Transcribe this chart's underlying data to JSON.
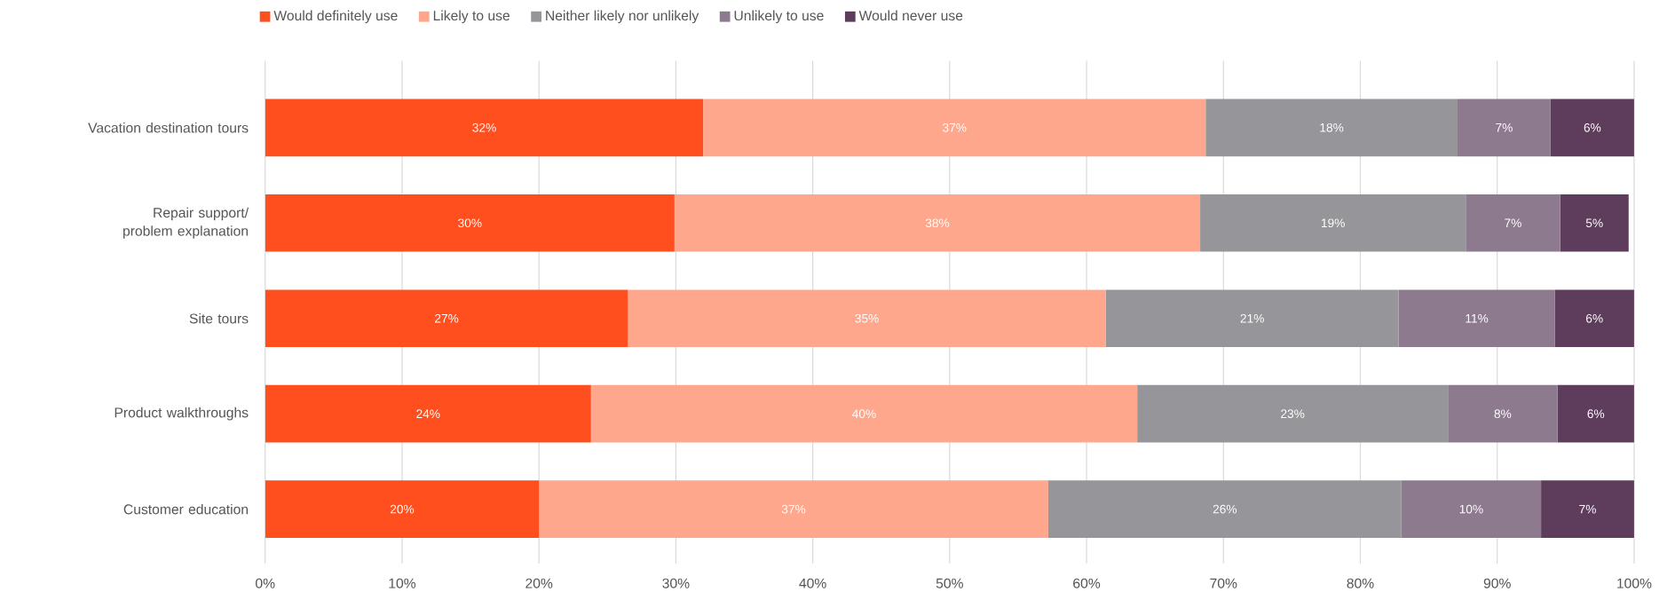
{
  "chart_data": {
    "type": "bar",
    "orientation": "horizontal",
    "stacked": true,
    "categories": [
      "Vacation destination tours",
      "Repair support/ problem explanation",
      "Site tours",
      "Product walkthroughs",
      "Customer education"
    ],
    "series": [
      {
        "name": "Would definitely use",
        "color": "#ff4f1f",
        "values": [
          32.0,
          29.9,
          26.5,
          23.8,
          20.0
        ],
        "value_labels": [
          "32%",
          "30%",
          "27%",
          "24%",
          "20%"
        ]
      },
      {
        "name": "Likely to use",
        "color": "#ffa78c",
        "values": [
          36.7,
          38.4,
          34.9,
          39.9,
          37.2
        ],
        "value_labels": [
          "37%",
          "38%",
          "35%",
          "40%",
          "37%"
        ]
      },
      {
        "name": "Neither likely nor unlikely",
        "color": "#96969a",
        "values": [
          18.4,
          19.4,
          21.4,
          22.7,
          25.8
        ],
        "value_labels": [
          "18%",
          "19%",
          "21%",
          "23%",
          "26%"
        ]
      },
      {
        "name": "Unlikely to use",
        "color": "#8e7a8e",
        "values": [
          6.8,
          6.9,
          11.4,
          8.0,
          10.2
        ],
        "value_labels": [
          "7%",
          "7%",
          "11%",
          "8%",
          "10%"
        ]
      },
      {
        "name": "Would never use",
        "color": "#5e3c5c",
        "values": [
          6.1,
          5.0,
          5.8,
          5.6,
          6.8
        ],
        "value_labels": [
          "6%",
          "5%",
          "6%",
          "6%",
          "7%"
        ]
      }
    ],
    "xlim": [
      0,
      100
    ],
    "xticks": [
      {
        "value": 0,
        "label": "0%"
      },
      {
        "value": 10,
        "label": "10%"
      },
      {
        "value": 20,
        "label": "20%"
      },
      {
        "value": 30,
        "label": "30%"
      },
      {
        "value": 40,
        "label": "40%"
      },
      {
        "value": 50,
        "label": "50%"
      },
      {
        "value": 60,
        "label": "60%"
      },
      {
        "value": 70,
        "label": "70%"
      },
      {
        "value": 80,
        "label": "80%"
      },
      {
        "value": 90,
        "label": "90%"
      },
      {
        "value": 100,
        "label": "100%"
      }
    ],
    "grid": "x",
    "legend": "top"
  }
}
